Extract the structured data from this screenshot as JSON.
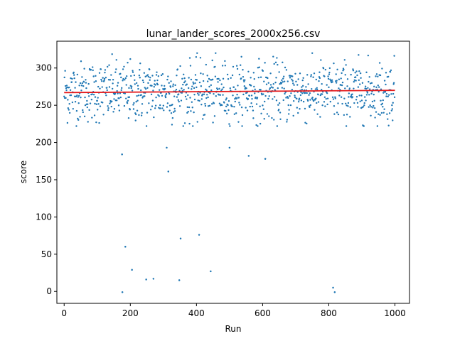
{
  "chart_data": {
    "type": "scatter",
    "title": "lunar_lander_scores_2000x256.csv",
    "xlabel": "Run",
    "ylabel": "score",
    "xlim": [
      -22,
      1044
    ],
    "ylim": [
      -16,
      336
    ],
    "x_ticks": [
      0,
      200,
      400,
      600,
      800,
      1000
    ],
    "y_ticks": [
      0,
      50,
      100,
      150,
      200,
      250,
      300
    ],
    "grid": false,
    "marker_color": "#1f77b4",
    "trend_color": "#e41a1c",
    "series": [
      {
        "kind": "points",
        "n_points": 1000,
        "bulk_mean": 268,
        "bulk_spread": 27,
        "outliers": [
          [
            175,
            184
          ],
          [
            185,
            60
          ],
          [
            205,
            29
          ],
          [
            248,
            16
          ],
          [
            270,
            17
          ],
          [
            310,
            193
          ],
          [
            315,
            161
          ],
          [
            348,
            15
          ],
          [
            352,
            71
          ],
          [
            408,
            76
          ],
          [
            443,
            27
          ],
          [
            500,
            193
          ],
          [
            558,
            182
          ],
          [
            608,
            178
          ],
          [
            813,
            5
          ],
          [
            818,
            -1
          ],
          [
            176,
            -1
          ]
        ]
      },
      {
        "kind": "trend_line",
        "x": [
          0,
          1000
        ],
        "y": [
          267,
          270
        ]
      }
    ]
  }
}
